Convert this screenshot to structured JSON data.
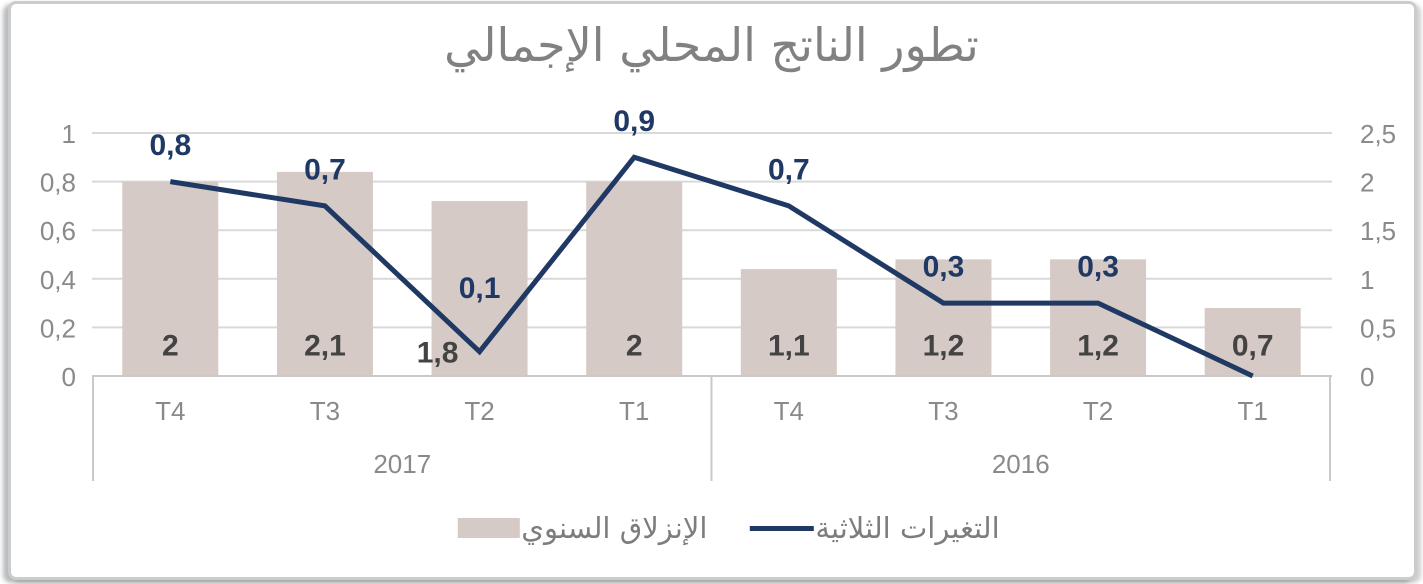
{
  "chart_data": {
    "type": "combo",
    "title": "تطور الناتج المحلي الإجمالي",
    "categories": [
      "T4",
      "T3",
      "T2",
      "T1",
      "T4",
      "T3",
      "T2",
      "T1"
    ],
    "category_groups": [
      {
        "label": "2017",
        "span": 4
      },
      {
        "label": "2016",
        "span": 4
      }
    ],
    "series": [
      {
        "name": "الإنزلاق السنوي",
        "type": "bar",
        "axis": "right",
        "color": "#d5cac5",
        "values": [
          2,
          2.1,
          1.8,
          2,
          1.1,
          1.2,
          1.2,
          0.7
        ],
        "labels": [
          "2",
          "2,1",
          "1,8",
          "2",
          "1,1",
          "1,2",
          "1,2",
          "0,7"
        ],
        "label_color": "#434343"
      },
      {
        "name": "التغيرات الثلاثية",
        "type": "line",
        "axis": "left",
        "color": "#1f3864",
        "values": [
          0.8,
          0.7,
          0.1,
          0.9,
          0.7,
          0.3,
          0.3,
          0
        ],
        "labels": [
          "0,8",
          "0,7",
          "0,1",
          "0,9",
          "0,7",
          "0,3",
          "0,3",
          ""
        ],
        "label_color": "#1f3864"
      }
    ],
    "left_axis": {
      "min": 0,
      "max": 1,
      "ticks": [
        "0",
        "0,2",
        "0,4",
        "0,6",
        "0,8",
        "1"
      ]
    },
    "right_axis": {
      "min": 0,
      "max": 2.5,
      "ticks": [
        "0",
        "0,5",
        "1",
        "1,5",
        "2",
        "2,5"
      ]
    },
    "grid": true,
    "legend_position": "bottom",
    "colors": {
      "gridline": "#d9d9d9",
      "axis_line": "#c9c9c9",
      "tick_text": "#8a8a8a",
      "title_text": "#818181",
      "legend_text": "#7d7d7d",
      "frame_border": "#c7cacc"
    }
  }
}
